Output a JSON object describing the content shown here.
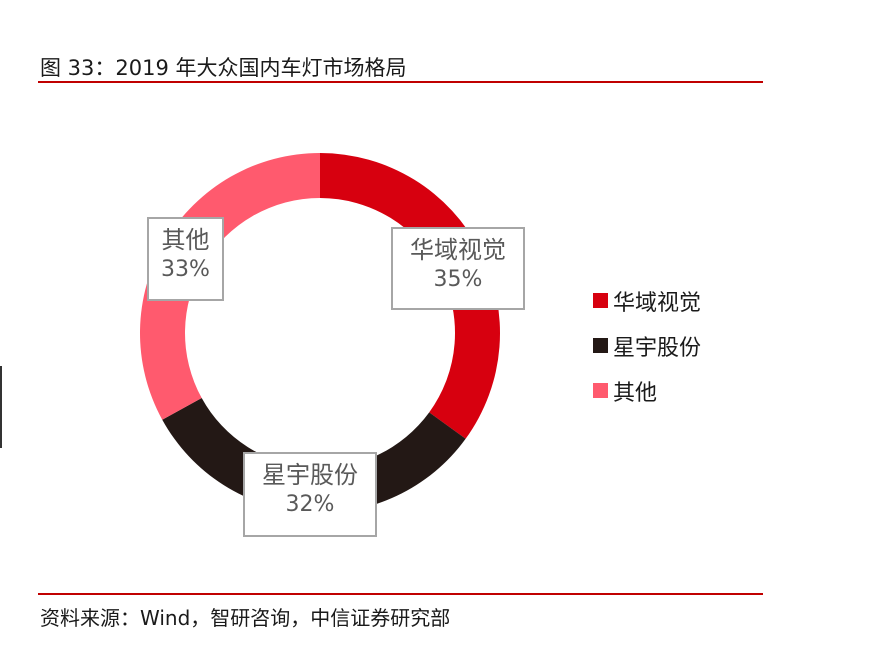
{
  "figure": {
    "title": "图 33：2019 年大众国内车灯市场格局",
    "source": "资料来源：Wind，智研咨询，中信证券研究部"
  },
  "chart_data": {
    "type": "pie",
    "donut": true,
    "categories": [
      "华域视觉",
      "星宇股份",
      "其他"
    ],
    "values": [
      35,
      32,
      33
    ],
    "value_labels": [
      "35%",
      "32%",
      "33%"
    ],
    "colors": [
      "#d7000f",
      "#231815",
      "#ff5a6e"
    ],
    "legend_position": "right"
  }
}
